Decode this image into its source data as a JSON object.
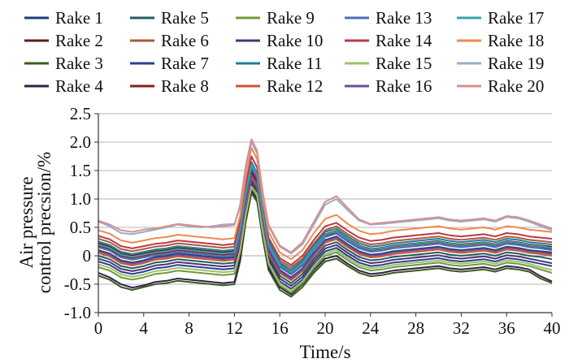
{
  "chart_data": {
    "type": "line",
    "title": "",
    "xlabel": "Time/s",
    "ylabel": [
      "Air pressure",
      "control precsion/%"
    ],
    "xlim": [
      0,
      40
    ],
    "ylim": [
      -1.0,
      2.5
    ],
    "xticks": [
      0,
      4,
      8,
      12,
      16,
      20,
      24,
      28,
      32,
      36,
      40
    ],
    "yticks": [
      -1.0,
      -0.5,
      0,
      0.5,
      1.0,
      1.5,
      2.0,
      2.5
    ],
    "xtick_labels": [
      "0",
      "4",
      "8",
      "12",
      "16",
      "20",
      "24",
      "28",
      "32",
      "36",
      "40"
    ],
    "ytick_labels": [
      "-1.0",
      "-0.5",
      "0",
      "0.5",
      "1.0",
      "1.5",
      "2.0",
      "2.5"
    ],
    "grid": "horizontal",
    "legend_position": "top",
    "x": [
      0,
      1,
      2,
      3,
      4,
      5,
      6,
      7,
      8,
      9,
      10,
      11,
      12,
      12.5,
      13,
      13.5,
      14,
      14.5,
      15,
      16,
      17,
      18,
      19,
      20,
      21,
      22,
      23,
      24,
      25,
      26,
      27,
      28,
      29,
      30,
      31,
      32,
      33,
      34,
      35,
      36,
      37,
      38,
      39,
      40
    ],
    "series": [
      {
        "name": "Rake 1",
        "color": "#1f3d7a",
        "values": [
          0.1,
          0.04,
          -0.08,
          -0.12,
          -0.08,
          -0.02,
          0.0,
          0.04,
          0.02,
          0.0,
          -0.02,
          -0.04,
          -0.02,
          0.35,
          0.9,
          1.35,
          1.2,
          0.6,
          0.1,
          -0.25,
          -0.38,
          -0.22,
          0.05,
          0.28,
          0.34,
          0.2,
          0.08,
          0.02,
          0.04,
          0.08,
          0.1,
          0.12,
          0.14,
          0.16,
          0.12,
          0.1,
          0.12,
          0.14,
          0.1,
          0.16,
          0.14,
          0.1,
          0.08,
          0.06
        ]
      },
      {
        "name": "Rake 2",
        "color": "#5c1e1e",
        "values": [
          0.22,
          0.16,
          0.04,
          0.0,
          0.04,
          0.08,
          0.1,
          0.14,
          0.12,
          0.1,
          0.08,
          0.06,
          0.08,
          0.45,
          1.0,
          1.45,
          1.3,
          0.7,
          0.2,
          -0.15,
          -0.28,
          -0.12,
          0.15,
          0.38,
          0.44,
          0.3,
          0.18,
          0.12,
          0.14,
          0.18,
          0.2,
          0.22,
          0.24,
          0.26,
          0.22,
          0.2,
          0.22,
          0.24,
          0.2,
          0.26,
          0.24,
          0.2,
          0.18,
          0.16
        ]
      },
      {
        "name": "Rake 3",
        "color": "#3a5a1c",
        "values": [
          -0.35,
          -0.42,
          -0.55,
          -0.6,
          -0.55,
          -0.5,
          -0.48,
          -0.44,
          -0.46,
          -0.48,
          -0.5,
          -0.52,
          -0.5,
          -0.1,
          0.6,
          1.1,
          0.95,
          0.3,
          -0.25,
          -0.6,
          -0.72,
          -0.55,
          -0.3,
          -0.1,
          -0.05,
          -0.18,
          -0.3,
          -0.36,
          -0.34,
          -0.3,
          -0.28,
          -0.26,
          -0.24,
          -0.22,
          -0.26,
          -0.28,
          -0.26,
          -0.24,
          -0.28,
          -0.22,
          -0.24,
          -0.28,
          -0.4,
          -0.48
        ]
      },
      {
        "name": "Rake 4",
        "color": "#2e2348",
        "values": [
          -0.3,
          -0.38,
          -0.5,
          -0.56,
          -0.52,
          -0.46,
          -0.44,
          -0.4,
          -0.42,
          -0.44,
          -0.46,
          -0.48,
          -0.46,
          -0.05,
          0.65,
          1.15,
          1.0,
          0.35,
          -0.2,
          -0.55,
          -0.68,
          -0.5,
          -0.25,
          -0.05,
          0.0,
          -0.14,
          -0.26,
          -0.32,
          -0.3,
          -0.26,
          -0.24,
          -0.22,
          -0.2,
          -0.18,
          -0.22,
          -0.24,
          -0.22,
          -0.2,
          -0.24,
          -0.18,
          -0.2,
          -0.24,
          -0.36,
          -0.45
        ]
      },
      {
        "name": "Rake 5",
        "color": "#1f5e63",
        "values": [
          0.0,
          -0.06,
          -0.18,
          -0.22,
          -0.18,
          -0.12,
          -0.1,
          -0.06,
          -0.08,
          -0.1,
          -0.12,
          -0.14,
          -0.12,
          0.25,
          0.85,
          1.3,
          1.15,
          0.55,
          0.0,
          -0.35,
          -0.48,
          -0.32,
          -0.05,
          0.18,
          0.24,
          0.1,
          -0.02,
          -0.08,
          -0.06,
          -0.02,
          0.0,
          0.02,
          0.04,
          0.06,
          0.02,
          0.0,
          0.02,
          0.04,
          0.0,
          0.06,
          0.04,
          0.0,
          -0.02,
          -0.06
        ]
      },
      {
        "name": "Rake 6",
        "color": "#b0583a",
        "values": [
          0.3,
          0.24,
          0.12,
          0.08,
          0.12,
          0.16,
          0.18,
          0.22,
          0.2,
          0.18,
          0.16,
          0.14,
          0.16,
          0.55,
          1.1,
          1.55,
          1.4,
          0.8,
          0.28,
          -0.08,
          -0.2,
          -0.05,
          0.22,
          0.45,
          0.52,
          0.38,
          0.26,
          0.2,
          0.22,
          0.26,
          0.28,
          0.3,
          0.32,
          0.34,
          0.3,
          0.28,
          0.3,
          0.32,
          0.28,
          0.34,
          0.32,
          0.28,
          0.26,
          0.24
        ]
      },
      {
        "name": "Rake 7",
        "color": "#2b3f8f",
        "values": [
          -0.1,
          -0.16,
          -0.28,
          -0.32,
          -0.28,
          -0.22,
          -0.2,
          -0.16,
          -0.18,
          -0.2,
          -0.22,
          -0.24,
          -0.22,
          0.15,
          0.75,
          1.25,
          1.1,
          0.45,
          -0.08,
          -0.45,
          -0.58,
          -0.42,
          -0.15,
          0.08,
          0.14,
          0.0,
          -0.12,
          -0.18,
          -0.16,
          -0.12,
          -0.1,
          -0.08,
          -0.06,
          -0.04,
          -0.08,
          -0.1,
          -0.08,
          -0.06,
          -0.1,
          -0.04,
          -0.06,
          -0.1,
          -0.14,
          -0.18
        ]
      },
      {
        "name": "Rake 8",
        "color": "#8c1c1c",
        "values": [
          0.18,
          0.12,
          0.0,
          -0.04,
          0.0,
          0.04,
          0.06,
          0.1,
          0.08,
          0.06,
          0.04,
          0.02,
          0.04,
          0.45,
          1.05,
          1.5,
          1.35,
          0.7,
          0.18,
          -0.18,
          -0.3,
          -0.14,
          0.12,
          0.35,
          0.42,
          0.28,
          0.16,
          0.1,
          0.12,
          0.16,
          0.18,
          0.2,
          0.22,
          0.24,
          0.2,
          0.18,
          0.2,
          0.22,
          0.18,
          0.24,
          0.22,
          0.18,
          0.16,
          0.12
        ]
      },
      {
        "name": "Rake 9",
        "color": "#6e9a3c",
        "values": [
          -0.2,
          -0.26,
          -0.38,
          -0.42,
          -0.38,
          -0.32,
          -0.3,
          -0.26,
          -0.28,
          -0.3,
          -0.32,
          -0.34,
          -0.32,
          0.05,
          0.7,
          1.2,
          1.05,
          0.4,
          -0.15,
          -0.52,
          -0.65,
          -0.48,
          -0.22,
          0.0,
          0.06,
          -0.08,
          -0.2,
          -0.26,
          -0.24,
          -0.2,
          -0.18,
          -0.16,
          -0.14,
          -0.12,
          -0.16,
          -0.18,
          -0.16,
          -0.14,
          -0.18,
          -0.12,
          -0.14,
          -0.18,
          -0.24,
          -0.3
        ]
      },
      {
        "name": "Rake 10",
        "color": "#4a3470",
        "values": [
          -0.05,
          -0.11,
          -0.23,
          -0.27,
          -0.23,
          -0.17,
          -0.15,
          -0.11,
          -0.13,
          -0.15,
          -0.17,
          -0.19,
          -0.17,
          0.2,
          0.8,
          1.28,
          1.12,
          0.5,
          -0.04,
          -0.4,
          -0.53,
          -0.37,
          -0.1,
          0.13,
          0.19,
          0.05,
          -0.07,
          -0.13,
          -0.11,
          -0.07,
          -0.05,
          -0.03,
          -0.01,
          0.01,
          -0.03,
          -0.05,
          -0.03,
          -0.01,
          -0.05,
          0.01,
          -0.01,
          -0.05,
          -0.09,
          -0.13
        ]
      },
      {
        "name": "Rake 11",
        "color": "#1f7d9a",
        "values": [
          0.25,
          0.19,
          0.07,
          0.03,
          0.07,
          0.11,
          0.13,
          0.17,
          0.15,
          0.13,
          0.11,
          0.09,
          0.11,
          0.5,
          1.15,
          1.65,
          1.45,
          0.78,
          0.24,
          -0.12,
          -0.24,
          -0.08,
          0.18,
          0.42,
          0.48,
          0.34,
          0.22,
          0.16,
          0.18,
          0.22,
          0.24,
          0.26,
          0.28,
          0.3,
          0.26,
          0.24,
          0.26,
          0.28,
          0.24,
          0.3,
          0.28,
          0.24,
          0.22,
          0.2
        ]
      },
      {
        "name": "Rake 12",
        "color": "#d2552a",
        "values": [
          0.05,
          -0.01,
          -0.13,
          -0.17,
          -0.13,
          -0.07,
          -0.05,
          -0.01,
          -0.03,
          -0.05,
          -0.07,
          -0.09,
          -0.07,
          0.3,
          0.9,
          1.38,
          1.22,
          0.58,
          0.04,
          -0.3,
          -0.43,
          -0.27,
          0.0,
          0.23,
          0.29,
          0.15,
          0.03,
          -0.03,
          -0.01,
          0.03,
          0.05,
          0.07,
          0.09,
          0.11,
          0.07,
          0.05,
          0.07,
          0.09,
          0.05,
          0.11,
          0.09,
          0.05,
          0.03,
          0.0
        ]
      },
      {
        "name": "Rake 13",
        "color": "#4a70b8",
        "values": [
          0.15,
          0.09,
          -0.03,
          -0.07,
          -0.03,
          0.01,
          0.03,
          0.07,
          0.05,
          0.03,
          0.01,
          -0.01,
          0.01,
          0.4,
          1.05,
          1.55,
          1.38,
          0.72,
          0.16,
          -0.2,
          -0.33,
          -0.17,
          0.1,
          0.33,
          0.39,
          0.25,
          0.13,
          0.07,
          0.09,
          0.13,
          0.15,
          0.17,
          0.19,
          0.21,
          0.17,
          0.15,
          0.17,
          0.19,
          0.15,
          0.21,
          0.19,
          0.15,
          0.13,
          0.1
        ]
      },
      {
        "name": "Rake 14",
        "color": "#b83a48",
        "values": [
          0.35,
          0.29,
          0.17,
          0.13,
          0.17,
          0.21,
          0.23,
          0.27,
          0.25,
          0.23,
          0.21,
          0.19,
          0.21,
          0.6,
          1.25,
          1.75,
          1.55,
          0.88,
          0.32,
          -0.04,
          -0.16,
          0.0,
          0.28,
          0.52,
          0.58,
          0.44,
          0.32,
          0.26,
          0.28,
          0.32,
          0.34,
          0.36,
          0.38,
          0.4,
          0.36,
          0.34,
          0.36,
          0.38,
          0.34,
          0.4,
          0.38,
          0.34,
          0.32,
          0.3
        ]
      },
      {
        "name": "Rake 15",
        "color": "#9cc06a",
        "values": [
          -0.15,
          -0.21,
          -0.33,
          -0.37,
          -0.33,
          -0.27,
          -0.25,
          -0.21,
          -0.23,
          -0.25,
          -0.27,
          -0.29,
          -0.27,
          0.1,
          0.72,
          1.22,
          1.08,
          0.42,
          -0.12,
          -0.48,
          -0.61,
          -0.45,
          -0.18,
          0.04,
          0.1,
          -0.04,
          -0.16,
          -0.22,
          -0.2,
          -0.16,
          -0.14,
          -0.12,
          -0.1,
          -0.08,
          -0.12,
          -0.14,
          -0.12,
          -0.1,
          -0.14,
          -0.08,
          -0.1,
          -0.14,
          -0.2,
          -0.25
        ]
      },
      {
        "name": "Rake 16",
        "color": "#6b4f95",
        "values": [
          0.08,
          0.02,
          -0.1,
          -0.14,
          -0.1,
          -0.04,
          -0.02,
          0.02,
          0.0,
          -0.02,
          -0.04,
          -0.06,
          -0.04,
          0.33,
          0.95,
          1.42,
          1.26,
          0.62,
          0.07,
          -0.27,
          -0.4,
          -0.24,
          0.03,
          0.26,
          0.32,
          0.18,
          0.06,
          0.0,
          0.02,
          0.06,
          0.08,
          0.1,
          0.12,
          0.14,
          0.1,
          0.08,
          0.1,
          0.12,
          0.08,
          0.14,
          0.12,
          0.08,
          0.06,
          0.03
        ]
      },
      {
        "name": "Rake 17",
        "color": "#3aa0b0",
        "values": [
          0.2,
          0.14,
          0.02,
          -0.02,
          0.02,
          0.06,
          0.08,
          0.12,
          0.1,
          0.08,
          0.06,
          0.04,
          0.06,
          0.48,
          1.12,
          1.6,
          1.42,
          0.75,
          0.2,
          -0.16,
          -0.29,
          -0.13,
          0.14,
          0.37,
          0.43,
          0.29,
          0.17,
          0.11,
          0.13,
          0.17,
          0.19,
          0.21,
          0.23,
          0.25,
          0.21,
          0.19,
          0.21,
          0.23,
          0.19,
          0.25,
          0.23,
          0.19,
          0.17,
          0.14
        ]
      },
      {
        "name": "Rake 18",
        "color": "#f08a4b",
        "values": [
          0.45,
          0.39,
          0.27,
          0.23,
          0.27,
          0.31,
          0.33,
          0.37,
          0.35,
          0.33,
          0.31,
          0.29,
          0.31,
          0.7,
          1.4,
          1.9,
          1.7,
          0.98,
          0.42,
          0.06,
          -0.06,
          0.1,
          0.4,
          0.65,
          0.72,
          0.56,
          0.44,
          0.38,
          0.4,
          0.44,
          0.46,
          0.48,
          0.5,
          0.52,
          0.48,
          0.46,
          0.48,
          0.5,
          0.46,
          0.52,
          0.5,
          0.46,
          0.44,
          0.42
        ]
      },
      {
        "name": "Rake 19",
        "color": "#9aabcc",
        "values": [
          0.6,
          0.52,
          0.4,
          0.38,
          0.42,
          0.46,
          0.5,
          0.55,
          0.52,
          0.5,
          0.52,
          0.55,
          0.56,
          0.85,
          1.55,
          2.0,
          1.8,
          1.08,
          0.52,
          0.16,
          0.04,
          0.2,
          0.55,
          0.9,
          1.0,
          0.8,
          0.62,
          0.55,
          0.56,
          0.58,
          0.6,
          0.62,
          0.64,
          0.66,
          0.62,
          0.6,
          0.62,
          0.64,
          0.6,
          0.68,
          0.66,
          0.6,
          0.52,
          0.45
        ]
      },
      {
        "name": "Rake 20",
        "color": "#d99090",
        "values": [
          0.62,
          0.55,
          0.45,
          0.42,
          0.46,
          0.48,
          0.52,
          0.56,
          0.54,
          0.52,
          0.5,
          0.52,
          0.54,
          0.9,
          1.6,
          2.05,
          1.85,
          1.12,
          0.55,
          0.18,
          0.06,
          0.24,
          0.6,
          0.95,
          1.05,
          0.84,
          0.64,
          0.56,
          0.58,
          0.6,
          0.62,
          0.64,
          0.66,
          0.68,
          0.64,
          0.62,
          0.64,
          0.66,
          0.62,
          0.7,
          0.68,
          0.62,
          0.55,
          0.48
        ]
      }
    ]
  }
}
